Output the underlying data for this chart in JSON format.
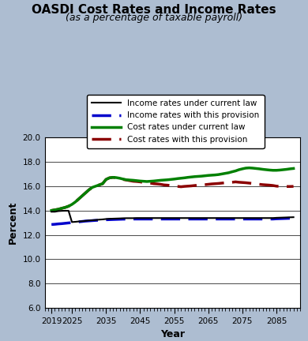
{
  "title": "OASDI Cost Rates and Income Rates",
  "subtitle": "(as a percentage of taxable payroll)",
  "xlabel": "Year",
  "ylabel": "Percent",
  "ylim": [
    6.0,
    20.0
  ],
  "yticks": [
    6.0,
    8.0,
    10.0,
    12.0,
    14.0,
    16.0,
    18.0,
    20.0
  ],
  "xticks": [
    2019,
    2025,
    2035,
    2045,
    2055,
    2065,
    2075,
    2085
  ],
  "xlim": [
    2017,
    2092
  ],
  "bg_color": "#adbdd1",
  "plot_bg": "#ffffff",
  "years": [
    2019,
    2020,
    2021,
    2022,
    2023,
    2024,
    2025,
    2026,
    2027,
    2028,
    2029,
    2030,
    2031,
    2032,
    2033,
    2034,
    2035,
    2036,
    2037,
    2038,
    2039,
    2040,
    2041,
    2042,
    2043,
    2044,
    2045,
    2046,
    2047,
    2048,
    2049,
    2050,
    2051,
    2052,
    2053,
    2054,
    2055,
    2056,
    2057,
    2058,
    2059,
    2060,
    2061,
    2062,
    2063,
    2064,
    2065,
    2066,
    2067,
    2068,
    2069,
    2070,
    2071,
    2072,
    2073,
    2074,
    2075,
    2076,
    2077,
    2078,
    2079,
    2080,
    2081,
    2082,
    2083,
    2084,
    2085,
    2086,
    2087,
    2088,
    2089,
    2090
  ],
  "income_current": [
    13.9,
    13.9,
    13.95,
    13.97,
    13.98,
    13.98,
    13.05,
    13.07,
    13.1,
    13.12,
    13.15,
    13.18,
    13.2,
    13.22,
    13.25,
    13.27,
    13.3,
    13.32,
    13.33,
    13.34,
    13.35,
    13.36,
    13.37,
    13.37,
    13.37,
    13.38,
    13.38,
    13.38,
    13.38,
    13.38,
    13.38,
    13.38,
    13.38,
    13.38,
    13.38,
    13.38,
    13.38,
    13.38,
    13.38,
    13.38,
    13.38,
    13.38,
    13.38,
    13.38,
    13.38,
    13.38,
    13.38,
    13.38,
    13.38,
    13.38,
    13.38,
    13.38,
    13.38,
    13.38,
    13.38,
    13.38,
    13.38,
    13.38,
    13.38,
    13.38,
    13.38,
    13.38,
    13.38,
    13.38,
    13.38,
    13.38,
    13.4,
    13.41,
    13.42,
    13.43,
    13.44,
    13.45
  ],
  "income_provision": [
    12.85,
    12.87,
    12.9,
    12.92,
    12.95,
    12.98,
    13.0,
    13.03,
    13.07,
    13.1,
    13.13,
    13.15,
    13.17,
    13.19,
    13.2,
    13.22,
    13.24,
    13.25,
    13.26,
    13.27,
    13.28,
    13.29,
    13.29,
    13.3,
    13.3,
    13.3,
    13.3,
    13.3,
    13.3,
    13.3,
    13.3,
    13.3,
    13.3,
    13.3,
    13.3,
    13.3,
    13.3,
    13.3,
    13.3,
    13.3,
    13.3,
    13.3,
    13.3,
    13.3,
    13.3,
    13.3,
    13.3,
    13.3,
    13.3,
    13.3,
    13.3,
    13.3,
    13.3,
    13.3,
    13.3,
    13.3,
    13.3,
    13.3,
    13.3,
    13.3,
    13.3,
    13.3,
    13.3,
    13.3,
    13.3,
    13.3,
    13.32,
    13.33,
    13.34,
    13.35,
    13.36,
    13.37
  ],
  "cost_current": [
    14.0,
    14.05,
    14.1,
    14.18,
    14.25,
    14.35,
    14.5,
    14.7,
    14.95,
    15.2,
    15.45,
    15.7,
    15.9,
    16.0,
    16.1,
    16.2,
    16.55,
    16.68,
    16.72,
    16.7,
    16.65,
    16.58,
    16.52,
    16.5,
    16.48,
    16.45,
    16.42,
    16.4,
    16.38,
    16.4,
    16.42,
    16.45,
    16.48,
    16.5,
    16.52,
    16.55,
    16.58,
    16.62,
    16.65,
    16.68,
    16.72,
    16.75,
    16.78,
    16.8,
    16.82,
    16.85,
    16.88,
    16.9,
    16.92,
    16.95,
    17.0,
    17.05,
    17.1,
    17.18,
    17.25,
    17.35,
    17.42,
    17.48,
    17.5,
    17.48,
    17.45,
    17.42,
    17.38,
    17.35,
    17.32,
    17.3,
    17.3,
    17.32,
    17.35,
    17.38,
    17.42,
    17.45
  ],
  "cost_provision": [
    14.0,
    14.05,
    14.1,
    14.18,
    14.25,
    14.35,
    14.5,
    14.7,
    14.95,
    15.2,
    15.45,
    15.7,
    15.9,
    16.0,
    16.1,
    16.2,
    16.55,
    16.68,
    16.72,
    16.7,
    16.65,
    16.55,
    16.5,
    16.45,
    16.4,
    16.38,
    16.35,
    16.3,
    16.28,
    16.25,
    16.2,
    16.18,
    16.15,
    16.1,
    16.08,
    16.05,
    16.0,
    15.98,
    15.95,
    15.98,
    16.0,
    16.02,
    16.05,
    16.08,
    16.1,
    16.12,
    16.15,
    16.18,
    16.2,
    16.22,
    16.25,
    16.28,
    16.3,
    16.32,
    16.35,
    16.32,
    16.3,
    16.28,
    16.25,
    16.22,
    16.18,
    16.15,
    16.12,
    16.1,
    16.08,
    16.05,
    16.0,
    15.98,
    15.97,
    15.97,
    15.97,
    15.98
  ],
  "legend": [
    {
      "label": "Income rates under current law",
      "color": "#000000",
      "linestyle": "solid",
      "lw": 1.5
    },
    {
      "label": "Income rates with this provision",
      "color": "#0000cc",
      "linestyle": "dashed",
      "lw": 2.5
    },
    {
      "label": "Cost rates under current law",
      "color": "#008000",
      "linestyle": "solid",
      "lw": 2.5
    },
    {
      "label": "Cost rates with this provision",
      "color": "#8b0000",
      "linestyle": "dashed",
      "lw": 2.5
    }
  ]
}
